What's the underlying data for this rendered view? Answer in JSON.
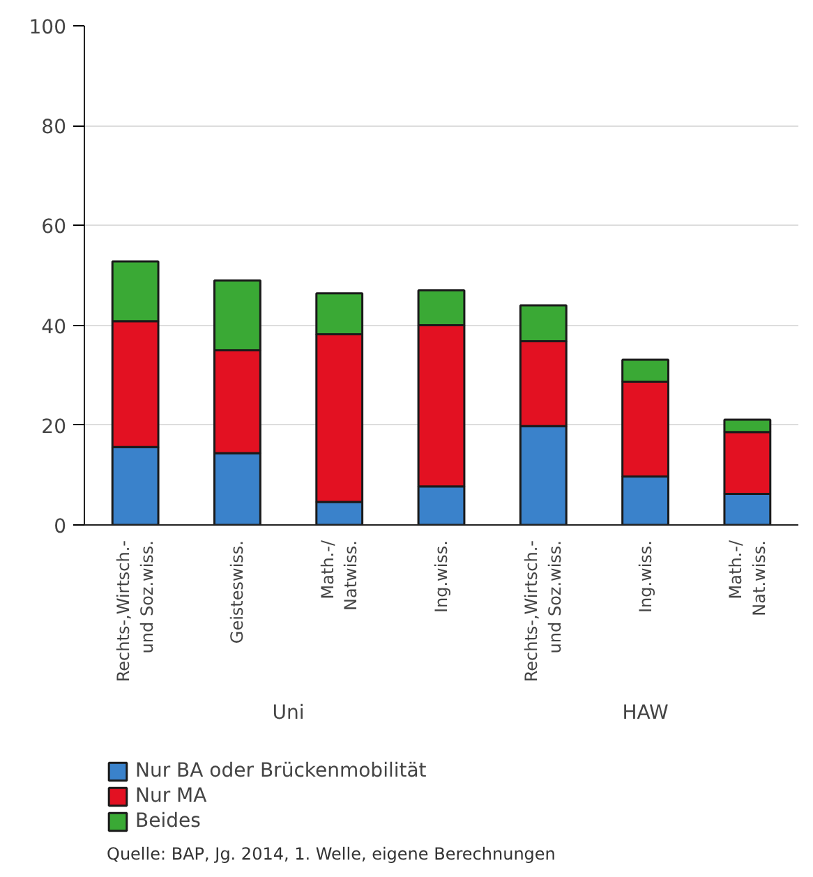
{
  "chart_data": {
    "type": "bar",
    "stacked": true,
    "categories": [
      "Rechts-,Wirtsch.-\nund Soz.wiss.",
      "Geisteswiss.",
      "Math.-/\nNatwiss.",
      "Ing.wiss.",
      "Rechts-,Wirtsch.-\nund Soz.wiss.",
      "Ing.wiss.",
      "Math.-/\nNat.wiss."
    ],
    "series": [
      {
        "name": "Nur BA oder Brückenmobilität",
        "color": "#3a82cb",
        "values": [
          15.6,
          14.4,
          4.6,
          7.7,
          19.8,
          9.7,
          6.2
        ]
      },
      {
        "name": "Nur MA",
        "color": "#e31122",
        "values": [
          25.2,
          20.6,
          33.6,
          32.3,
          17.0,
          19.0,
          12.4
        ]
      },
      {
        "name": "Beides",
        "color": "#3aa935",
        "values": [
          12.0,
          14.0,
          8.2,
          7.0,
          7.2,
          4.4,
          2.5
        ]
      }
    ],
    "ylim": [
      0,
      100
    ],
    "yticks": [
      0,
      20,
      40,
      60,
      80,
      100
    ],
    "grid": "y",
    "legend": "bottom",
    "annotations": [
      "Uni",
      "HAW",
      "Quelle: BAP, Jg. 2014, 1. Welle, eigene Berechnungen"
    ]
  }
}
